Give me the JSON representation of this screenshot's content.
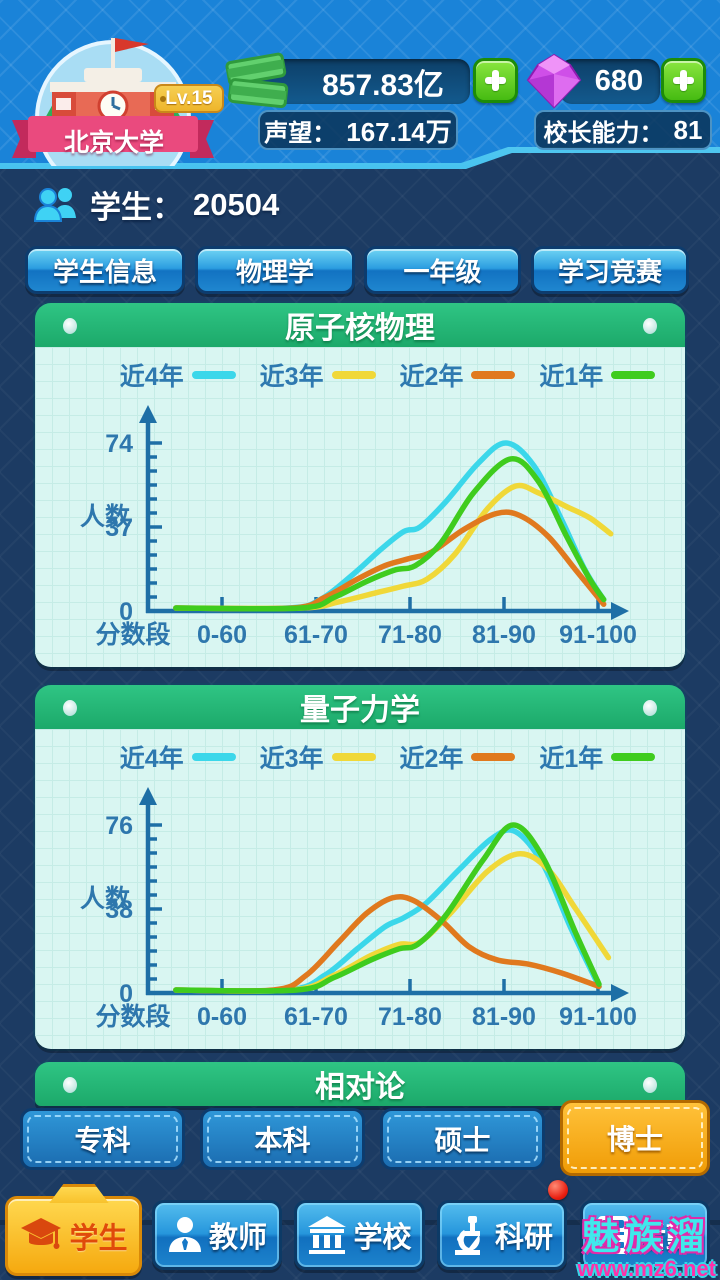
{
  "header": {
    "level": "Lv.15",
    "school_name": "北京大学",
    "money": "857.83亿",
    "gems": "680",
    "reputation_label": "声望：",
    "reputation_value": "167.14万",
    "ability_label": "校长能力：",
    "ability_value": "81"
  },
  "students_row": {
    "label": "学生：",
    "value": "20504"
  },
  "filter_tabs": [
    {
      "label": "学生信息"
    },
    {
      "label": "物理学"
    },
    {
      "label": "一年级"
    },
    {
      "label": "学习竞赛"
    }
  ],
  "panel3_title": "相对论",
  "degree_tabs": [
    {
      "label": "专科",
      "selected": false
    },
    {
      "label": "本科",
      "selected": false
    },
    {
      "label": "硕士",
      "selected": false
    },
    {
      "label": "博士",
      "selected": true
    }
  ],
  "nav": [
    {
      "label": "学生",
      "icon": "graduation-cap-icon",
      "selected": true
    },
    {
      "label": "教师",
      "icon": "person-icon",
      "selected": false
    },
    {
      "label": "学校",
      "icon": "bank-icon",
      "selected": false
    },
    {
      "label": "科研",
      "icon": "microscope-icon",
      "selected": false
    },
    {
      "label": "后勤",
      "icon": "calculator-icon",
      "selected": false,
      "has_badge": true
    }
  ],
  "watermark": {
    "line1": "魅族溜",
    "line2": "www.mz6.net"
  },
  "colors": {
    "header_blue": "#1a83d8",
    "content_navy": "#1c3b63",
    "panel_header_green": "#25b87b",
    "panel_bg": "#d9f6f2",
    "axis_blue": "#1e6fa6",
    "plus_green": "#52c81f",
    "selected_orange": "#f7a713",
    "notification_red": "#e81e10"
  },
  "chart_data": [
    {
      "type": "line",
      "title": "原子核物理",
      "ylabel": "人数",
      "xlabel": "分数段",
      "categories": [
        "0-60",
        "61-70",
        "71-80",
        "81-90",
        "91-100"
      ],
      "yticks": [
        0,
        37,
        74
      ],
      "ymax": 74,
      "grid": true,
      "legend_position": "top",
      "series": [
        {
          "name": "近4年",
          "color": "#3bd7ea",
          "values_at_categories": [
            0,
            0,
            35,
            71,
            15
          ],
          "curve": [
            [
              0.06,
              0
            ],
            [
              0.3,
              0
            ],
            [
              0.37,
              5
            ],
            [
              0.44,
              16
            ],
            [
              0.5,
              27
            ],
            [
              0.55,
              35
            ],
            [
              0.585,
              37
            ],
            [
              0.64,
              48
            ],
            [
              0.71,
              65
            ],
            [
              0.77,
              74
            ],
            [
              0.83,
              64
            ],
            [
              0.89,
              40
            ],
            [
              0.94,
              18
            ],
            [
              0.98,
              5
            ]
          ]
        },
        {
          "name": "近3年",
          "color": "#f0d838",
          "values_at_categories": [
            0,
            0,
            11,
            52,
            41
          ],
          "curve": [
            [
              0.06,
              0
            ],
            [
              0.33,
              0
            ],
            [
              0.41,
              4
            ],
            [
              0.49,
              8
            ],
            [
              0.55,
              11
            ],
            [
              0.6,
              14
            ],
            [
              0.66,
              25
            ],
            [
              0.73,
              45
            ],
            [
              0.79,
              55
            ],
            [
              0.84,
              52
            ],
            [
              0.9,
              46
            ],
            [
              0.95,
              41
            ],
            [
              0.995,
              34
            ]
          ]
        },
        {
          "name": "近2年",
          "color": "#e0791e",
          "values_at_categories": [
            0,
            0,
            23,
            43,
            8
          ],
          "curve": [
            [
              0.06,
              0
            ],
            [
              0.31,
              0
            ],
            [
              0.38,
              6
            ],
            [
              0.45,
              14
            ],
            [
              0.51,
              20
            ],
            [
              0.56,
              23
            ],
            [
              0.61,
              26
            ],
            [
              0.68,
              36
            ],
            [
              0.75,
              43
            ],
            [
              0.8,
              42
            ],
            [
              0.86,
              33
            ],
            [
              0.92,
              18
            ],
            [
              0.98,
              3
            ]
          ]
        },
        {
          "name": "近1年",
          "color": "#3fcc1e",
          "values_at_categories": [
            0,
            0,
            19,
            64,
            14
          ],
          "curve": [
            [
              0.06,
              0
            ],
            [
              0.33,
              0
            ],
            [
              0.4,
              6
            ],
            [
              0.47,
              13
            ],
            [
              0.53,
              18
            ],
            [
              0.575,
              20
            ],
            [
              0.63,
              30
            ],
            [
              0.7,
              52
            ],
            [
              0.78,
              67
            ],
            [
              0.84,
              57
            ],
            [
              0.9,
              33
            ],
            [
              0.95,
              14
            ],
            [
              0.98,
              5
            ]
          ]
        }
      ]
    },
    {
      "type": "line",
      "title": "量子力学",
      "ylabel": "人数",
      "xlabel": "分数段",
      "categories": [
        "0-60",
        "61-70",
        "71-80",
        "81-90",
        "91-100"
      ],
      "yticks": [
        0,
        38,
        76
      ],
      "ymax": 76,
      "grid": true,
      "legend_position": "top",
      "series": [
        {
          "name": "近4年",
          "color": "#3bd7ea",
          "values_at_categories": [
            0,
            0,
            33,
            73,
            6
          ],
          "curve": [
            [
              0.06,
              0
            ],
            [
              0.3,
              0
            ],
            [
              0.38,
              8
            ],
            [
              0.45,
              20
            ],
            [
              0.51,
              30
            ],
            [
              0.55,
              34
            ],
            [
              0.6,
              41
            ],
            [
              0.67,
              56
            ],
            [
              0.74,
              70
            ],
            [
              0.79,
              73
            ],
            [
              0.85,
              58
            ],
            [
              0.91,
              29
            ],
            [
              0.97,
              3
            ]
          ]
        },
        {
          "name": "近3年",
          "color": "#f0d838",
          "values_at_categories": [
            0,
            0,
            22,
            62,
            25
          ],
          "curve": [
            [
              0.06,
              0
            ],
            [
              0.31,
              0
            ],
            [
              0.4,
              8
            ],
            [
              0.48,
              17
            ],
            [
              0.54,
              22
            ],
            [
              0.585,
              23
            ],
            [
              0.65,
              36
            ],
            [
              0.73,
              55
            ],
            [
              0.8,
              63
            ],
            [
              0.86,
              56
            ],
            [
              0.92,
              38
            ],
            [
              0.99,
              16
            ]
          ]
        },
        {
          "name": "近2年",
          "color": "#e0791e",
          "values_at_categories": [
            0,
            2,
            43,
            15,
            4
          ],
          "curve": [
            [
              0.06,
              0
            ],
            [
              0.27,
              0
            ],
            [
              0.34,
              8
            ],
            [
              0.41,
              23
            ],
            [
              0.47,
              36
            ],
            [
              0.525,
              43
            ],
            [
              0.57,
              42
            ],
            [
              0.63,
              33
            ],
            [
              0.69,
              21
            ],
            [
              0.75,
              15
            ],
            [
              0.82,
              13
            ],
            [
              0.89,
              9
            ],
            [
              0.97,
              3
            ]
          ]
        },
        {
          "name": "近1年",
          "color": "#3fcc1e",
          "values_at_categories": [
            0,
            0,
            20,
            74,
            6
          ],
          "curve": [
            [
              0.06,
              0
            ],
            [
              0.32,
              0
            ],
            [
              0.4,
              7
            ],
            [
              0.48,
              15
            ],
            [
              0.54,
              20
            ],
            [
              0.58,
              22
            ],
            [
              0.64,
              35
            ],
            [
              0.72,
              60
            ],
            [
              0.785,
              76
            ],
            [
              0.85,
              61
            ],
            [
              0.92,
              27
            ],
            [
              0.97,
              4
            ]
          ]
        }
      ]
    }
  ]
}
